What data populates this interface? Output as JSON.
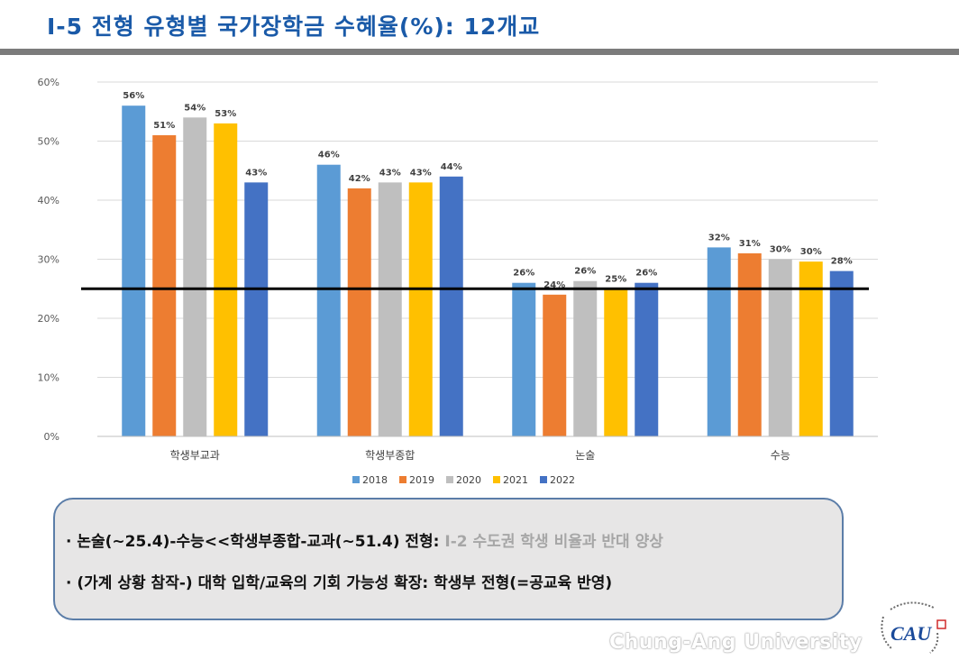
{
  "slide": {
    "title": "I-5 전형 유형별 국가장학금 수혜율(%): 12개교",
    "footer": "Chung-Ang University",
    "logo_text": "CAU"
  },
  "colors": {
    "title": "#1a5aa8",
    "series": [
      "#5b9bd5",
      "#ed7d31",
      "#bfbfbf",
      "#ffc000",
      "#4472c4"
    ],
    "reference_line": "#000000"
  },
  "chart_data": {
    "type": "bar",
    "categories": [
      "학생부교과",
      "학생부종합",
      "논술",
      "수능"
    ],
    "series": [
      {
        "name": "2018",
        "values": [
          56,
          46,
          26,
          32
        ],
        "labels": [
          "56%",
          "46%",
          "26%",
          "32%"
        ]
      },
      {
        "name": "2019",
        "values": [
          51,
          42,
          24,
          31
        ],
        "labels": [
          "51%",
          "42%",
          "24%",
          "31%"
        ]
      },
      {
        "name": "2020",
        "values": [
          54,
          43,
          26.3,
          30
        ],
        "labels": [
          "54%",
          "43%",
          "26%",
          "30%"
        ]
      },
      {
        "name": "2021",
        "values": [
          53,
          43,
          25,
          29.6
        ],
        "labels": [
          "53%",
          "43%",
          "25%",
          "30%"
        ]
      },
      {
        "name": "2022",
        "values": [
          43,
          44,
          26,
          28
        ],
        "labels": [
          "43%",
          "44%",
          "26%",
          "28%"
        ]
      }
    ],
    "ylim": [
      0,
      60
    ],
    "yticks": [
      0,
      10,
      20,
      30,
      40,
      50,
      60
    ],
    "ytick_labels": [
      "0%",
      "10%",
      "20%",
      "30%",
      "40%",
      "50%",
      "60%"
    ],
    "reference_line": 25,
    "grid": true,
    "legend_position": "bottom",
    "xlabel": "",
    "ylabel": ""
  },
  "notes": [
    {
      "bullet": "·",
      "text": " 논술(~25.4)-수능<<학생부종합-교과(~51.4) 전형: ",
      "gray": "I-2 수도권 학생 비율과 반대 양상"
    },
    {
      "bullet": "·",
      "text": " (가계 상황 참작-) 대학 입학/교육의 기회 가능성 확장: 학생부 전형(=공교육 반영)"
    }
  ]
}
